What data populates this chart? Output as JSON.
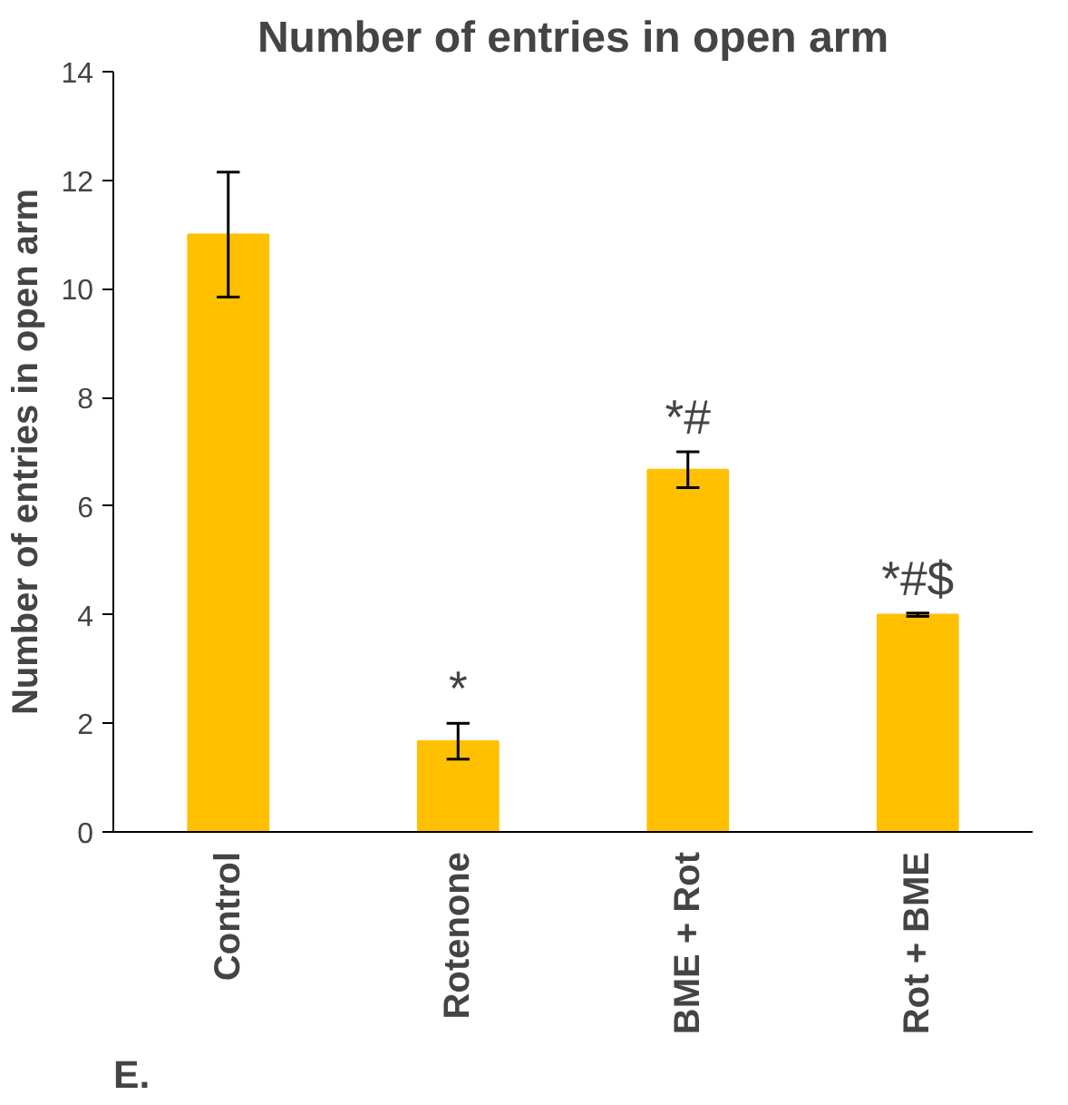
{
  "chart_data": {
    "type": "bar",
    "title": "Number of entries in open arm",
    "ylabel": "Number of entries in open arm",
    "categories": [
      "Control",
      "Rotenone",
      "BME + Rot",
      "Rot + BME"
    ],
    "values": [
      11,
      1.67,
      6.67,
      4.0
    ],
    "errors": [
      1.15,
      0.33,
      0.33,
      0.03
    ],
    "color": "#ffc000",
    "ylim": [
      0,
      14
    ],
    "yticks": [
      0,
      2,
      4,
      6,
      8,
      10,
      12,
      14
    ],
    "grid": false,
    "annotations": [
      {
        "text": "*",
        "x": "Rotenone",
        "y": 2.0
      },
      {
        "text": "*#",
        "x": "BME + Rot",
        "y": 7.0
      },
      {
        "text": "*#$",
        "x": "Rot + BME",
        "y": 4.03
      },
      "E."
    ]
  }
}
